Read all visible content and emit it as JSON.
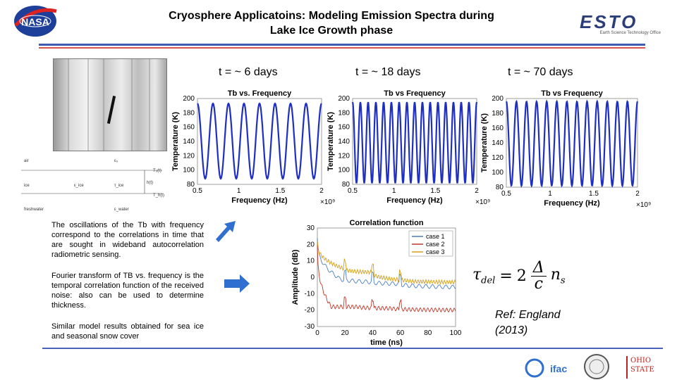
{
  "slide": {
    "title_line1": "Cryosphere Applicatoins:  Modeling Emission Spectra during",
    "title_line2": "Lake Ice Growth phase",
    "esto_logo": "ESTO",
    "esto_subtitle": "Earth Science Technology Office",
    "t_labels": [
      "t = ~ 6 days",
      "t =  ~ 18 days",
      "t = ~ 70 days"
    ],
    "para1": "The oscillations of the Tb with frequency correspond to the correlations in time that are sought in wideband autocorrelation radiometric sensing.",
    "para2": "Fourier transform of TB vs. frequency is the temporal correlation function of the received noise: also can be used to determine thickness.",
    "para3": "Similar model results obtained for sea ice and seasonal snow cover",
    "ref_line1": "Ref: England",
    "ref_line2": "(2013)",
    "formula": {
      "lhs": "τ",
      "lhs_sub": "del",
      "eq": "=",
      "coef": "2",
      "num": "Δ",
      "den": "c",
      "rhs": "n",
      "rhs_sub": "s"
    },
    "diagram": {
      "labels": [
        "air",
        "ε₀",
        "T₀(t)",
        "ice",
        "ε_ice",
        "τ_ice",
        "h(t)",
        "T_h(t)",
        "freshwater",
        "ε_water"
      ]
    },
    "logos": [
      "ifac-logo",
      "seal-logo",
      "ohio-state-logo"
    ],
    "ohio_text": "OHIO STATE"
  },
  "colors": {
    "accent_blue": "#3b5bb5",
    "accent_red": "#d9534f",
    "line_blue": "#1f2fbf",
    "arrow_blue": "#2e6fd0"
  },
  "chart_data": [
    {
      "type": "line",
      "title": "Tb vs. Frequency",
      "xlabel": "Frequency (Hz)",
      "ylabel": "Temperature (K)",
      "x_exponent": "×10⁹",
      "xlim": [
        0.5,
        2
      ],
      "ylim": [
        80,
        200
      ],
      "xticks": [
        "0.5",
        "1",
        "1.5",
        "2"
      ],
      "yticks": [
        "80",
        "100",
        "120",
        "140",
        "160",
        "180",
        "200"
      ],
      "series": [
        {
          "oscillation_cycles": 8,
          "min": 88,
          "max": 193
        }
      ]
    },
    {
      "type": "line",
      "title": "Tb vs Frequency",
      "xlabel": "Frequency (Hz)",
      "ylabel": "Temperature (K)",
      "x_exponent": "×10⁹",
      "xlim": [
        0.5,
        2
      ],
      "ylim": [
        80,
        200
      ],
      "xticks": [
        "0.5",
        "1",
        "1.5",
        "2"
      ],
      "yticks": [
        "80",
        "100",
        "120",
        "140",
        "160",
        "180",
        "200"
      ],
      "series": [
        {
          "oscillation_cycles": 16,
          "min": 82,
          "max": 195
        }
      ]
    },
    {
      "type": "line",
      "title": "Tb vs Frequency",
      "xlabel": "Frequency (Hz)",
      "ylabel": "Temperature (K)",
      "x_exponent": "×10⁹",
      "xlim": [
        0.5,
        2
      ],
      "ylim": [
        80,
        200
      ],
      "xticks": [
        "0.5",
        "1",
        "1.5",
        "2"
      ],
      "yticks": [
        "80",
        "100",
        "120",
        "140",
        "160",
        "180",
        "200"
      ],
      "series": [
        {
          "oscillation_cycles": 13,
          "min": 82,
          "max": 196
        }
      ]
    },
    {
      "type": "line",
      "title": "Correlation function",
      "xlabel": "time (ns)",
      "ylabel": "Amplitude (dB)",
      "xlim": [
        0,
        100
      ],
      "ylim": [
        -30,
        30
      ],
      "xticks": [
        "0",
        "20",
        "40",
        "60",
        "80",
        "100"
      ],
      "yticks": [
        "-30",
        "-20",
        "-10",
        "0",
        "10",
        "20",
        "30"
      ],
      "legend": "top-right",
      "series": [
        {
          "name": "case 1",
          "color": "#4a7fc1",
          "peaks": [
            [
              0,
              24
            ],
            [
              15,
              0
            ],
            [
              40,
              -3
            ],
            [
              60,
              -4
            ],
            [
              100,
              -6
            ]
          ]
        },
        {
          "name": "case 2",
          "color": "#c0392b",
          "peaks": [
            [
              0,
              20
            ],
            [
              10,
              -18
            ],
            [
              30,
              -18
            ],
            [
              55,
              -19
            ],
            [
              100,
              -20
            ]
          ]
        },
        {
          "name": "case 3",
          "color": "#d4a017",
          "peaks": [
            [
              0,
              22
            ],
            [
              20,
              5
            ],
            [
              40,
              3
            ],
            [
              65,
              -2
            ],
            [
              100,
              -3
            ]
          ]
        }
      ]
    }
  ]
}
